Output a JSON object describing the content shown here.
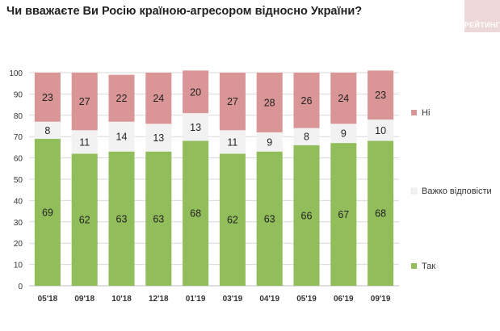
{
  "title": "Чи вважаєте Ви Росію країною-агресором відносно України?",
  "brand": {
    "logo_text": "РЕЙТИНГ"
  },
  "colors": {
    "yes": "#92bd5b",
    "hard": "#f2f2f2",
    "no": "#da9596",
    "text": "#222222",
    "grid": "#d9d9d9"
  },
  "chart_data": {
    "type": "bar",
    "stacked": true,
    "title": "Чи вважаєте Ви Росію країною-агресором відносно України?",
    "xlabel": "",
    "ylabel": "",
    "ylim": [
      0,
      100
    ],
    "yticks": [
      "0",
      "10",
      "20",
      "30",
      "40",
      "50",
      "60",
      "70",
      "80",
      "90",
      "100"
    ],
    "grid": true,
    "legend_position": "right",
    "categories": [
      "05'18",
      "09'18",
      "10'18",
      "12'18",
      "01'19",
      "03'19",
      "04'19",
      "05'19",
      "06'19",
      "09'19"
    ],
    "series": [
      {
        "name": "Так",
        "values": [
          69,
          62,
          63,
          63,
          68,
          62,
          63,
          66,
          67,
          68
        ]
      },
      {
        "name": "Важко відповісти",
        "values": [
          8,
          11,
          14,
          13,
          13,
          11,
          9,
          8,
          9,
          10
        ]
      },
      {
        "name": "Ні",
        "values": [
          23,
          27,
          22,
          24,
          20,
          27,
          28,
          26,
          24,
          23
        ]
      }
    ]
  }
}
